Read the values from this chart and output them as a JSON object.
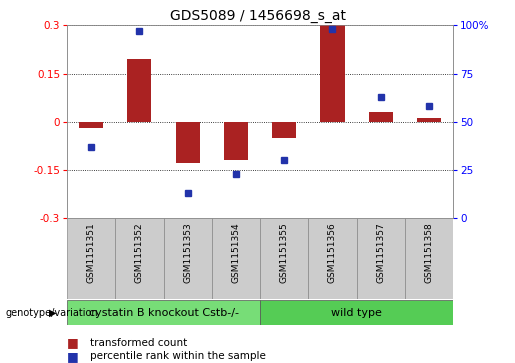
{
  "title": "GDS5089 / 1456698_s_at",
  "samples": [
    "GSM1151351",
    "GSM1151352",
    "GSM1151353",
    "GSM1151354",
    "GSM1151355",
    "GSM1151356",
    "GSM1151357",
    "GSM1151358"
  ],
  "bar_values": [
    -0.02,
    0.195,
    -0.13,
    -0.12,
    -0.05,
    0.3,
    0.03,
    0.01
  ],
  "dot_values": [
    37,
    97,
    13,
    23,
    30,
    98,
    63,
    58
  ],
  "group1_label": "cystatin B knockout Cstb-/-",
  "group2_label": "wild type",
  "group1_count": 4,
  "group2_count": 4,
  "genotype_label": "genotype/variation",
  "legend_bar_label": "transformed count",
  "legend_dot_label": "percentile rank within the sample",
  "ylim_left": [
    -0.3,
    0.3
  ],
  "yticks_left": [
    -0.3,
    -0.15,
    0.0,
    0.15,
    0.3
  ],
  "ylim_right": [
    0,
    100
  ],
  "yticks_right": [
    0,
    25,
    50,
    75,
    100
  ],
  "bar_color": "#aa2222",
  "dot_color": "#2233aa",
  "group1_color": "#77dd77",
  "group2_color": "#55cc55",
  "bg_color": "#ffffff",
  "plot_bg_color": "#ffffff",
  "sample_box_color": "#cccccc",
  "title_fontsize": 10,
  "axis_fontsize": 7.5,
  "sample_fontsize": 6.5,
  "group_fontsize": 8,
  "legend_fontsize": 7.5
}
